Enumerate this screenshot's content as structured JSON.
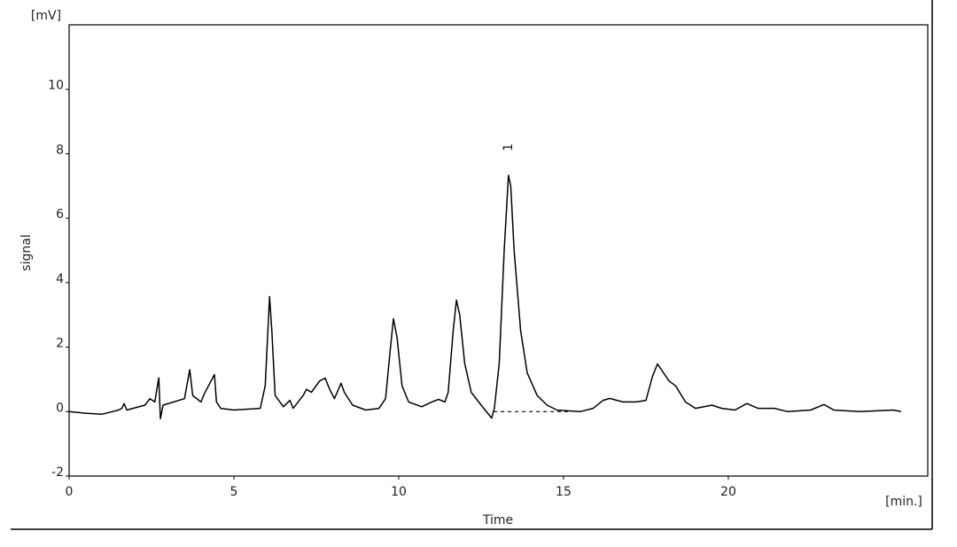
{
  "chart_data": {
    "type": "line",
    "y_label": "signal",
    "x_label": "Time",
    "y_unit": "[mV]",
    "x_unit": "[min.]",
    "x": [
      0,
      0.5,
      1.0,
      1.5,
      1.6,
      1.67,
      1.75,
      2.3,
      2.45,
      2.6,
      2.72,
      2.77,
      2.85,
      3.5,
      3.66,
      3.75,
      4.0,
      4.1,
      4.41,
      4.47,
      4.6,
      5.0,
      5.8,
      5.95,
      6.08,
      6.15,
      6.25,
      6.5,
      6.7,
      6.8,
      7.1,
      7.2,
      7.35,
      7.6,
      7.77,
      7.9,
      8.05,
      8.25,
      8.35,
      8.6,
      9.0,
      9.4,
      9.6,
      9.75,
      9.84,
      9.95,
      10.1,
      10.3,
      10.7,
      11.0,
      11.21,
      11.4,
      11.5,
      11.65,
      11.75,
      11.85,
      12.0,
      12.2,
      12.5,
      12.82,
      12.9,
      13.05,
      13.2,
      13.33,
      13.4,
      13.5,
      13.7,
      13.9,
      14.2,
      14.5,
      14.8,
      15.5,
      15.9,
      16.2,
      16.4,
      16.8,
      17.2,
      17.5,
      17.7,
      17.85,
      18.2,
      18.4,
      18.7,
      19.0,
      19.5,
      19.8,
      20.2,
      20.56,
      20.9,
      21.4,
      21.8,
      22.5,
      22.9,
      23.2,
      24.0,
      25.0,
      25.24
    ],
    "values": [
      0.0,
      -0.05,
      -0.08,
      0.05,
      0.1,
      0.25,
      0.05,
      0.2,
      0.4,
      0.3,
      1.05,
      -0.22,
      0.2,
      0.4,
      1.3,
      0.5,
      0.3,
      0.55,
      1.15,
      0.3,
      0.1,
      0.05,
      0.1,
      0.8,
      3.57,
      2.5,
      0.5,
      0.15,
      0.35,
      0.1,
      0.5,
      0.69,
      0.6,
      0.95,
      1.04,
      0.7,
      0.4,
      0.88,
      0.6,
      0.2,
      0.05,
      0.1,
      0.4,
      2.0,
      2.88,
      2.3,
      0.8,
      0.3,
      0.15,
      0.3,
      0.38,
      0.3,
      0.6,
      2.5,
      3.46,
      3.0,
      1.5,
      0.6,
      0.2,
      -0.2,
      0.1,
      1.5,
      5.0,
      7.33,
      7.0,
      5.0,
      2.5,
      1.2,
      0.5,
      0.2,
      0.05,
      0.0,
      0.1,
      0.35,
      0.41,
      0.3,
      0.3,
      0.35,
      1.1,
      1.48,
      0.95,
      0.8,
      0.3,
      0.1,
      0.2,
      0.1,
      0.05,
      0.25,
      0.1,
      0.1,
      0.0,
      0.05,
      0.22,
      0.05,
      0.0,
      0.05,
      0.0
    ],
    "color": "#000000",
    "baseline": {
      "x": [
        12.88,
        15.24
      ],
      "values": [
        0,
        0
      ]
    },
    "annotations": [
      {
        "text": "1",
        "x": 13.33,
        "y": 8.2
      }
    ],
    "xlim": [
      0,
      26.05
    ],
    "ylim": [
      -2,
      12
    ],
    "xticks": [
      0,
      5,
      10,
      15,
      20
    ],
    "yticks": [
      -2,
      0,
      2,
      4,
      6,
      8,
      10
    ]
  }
}
